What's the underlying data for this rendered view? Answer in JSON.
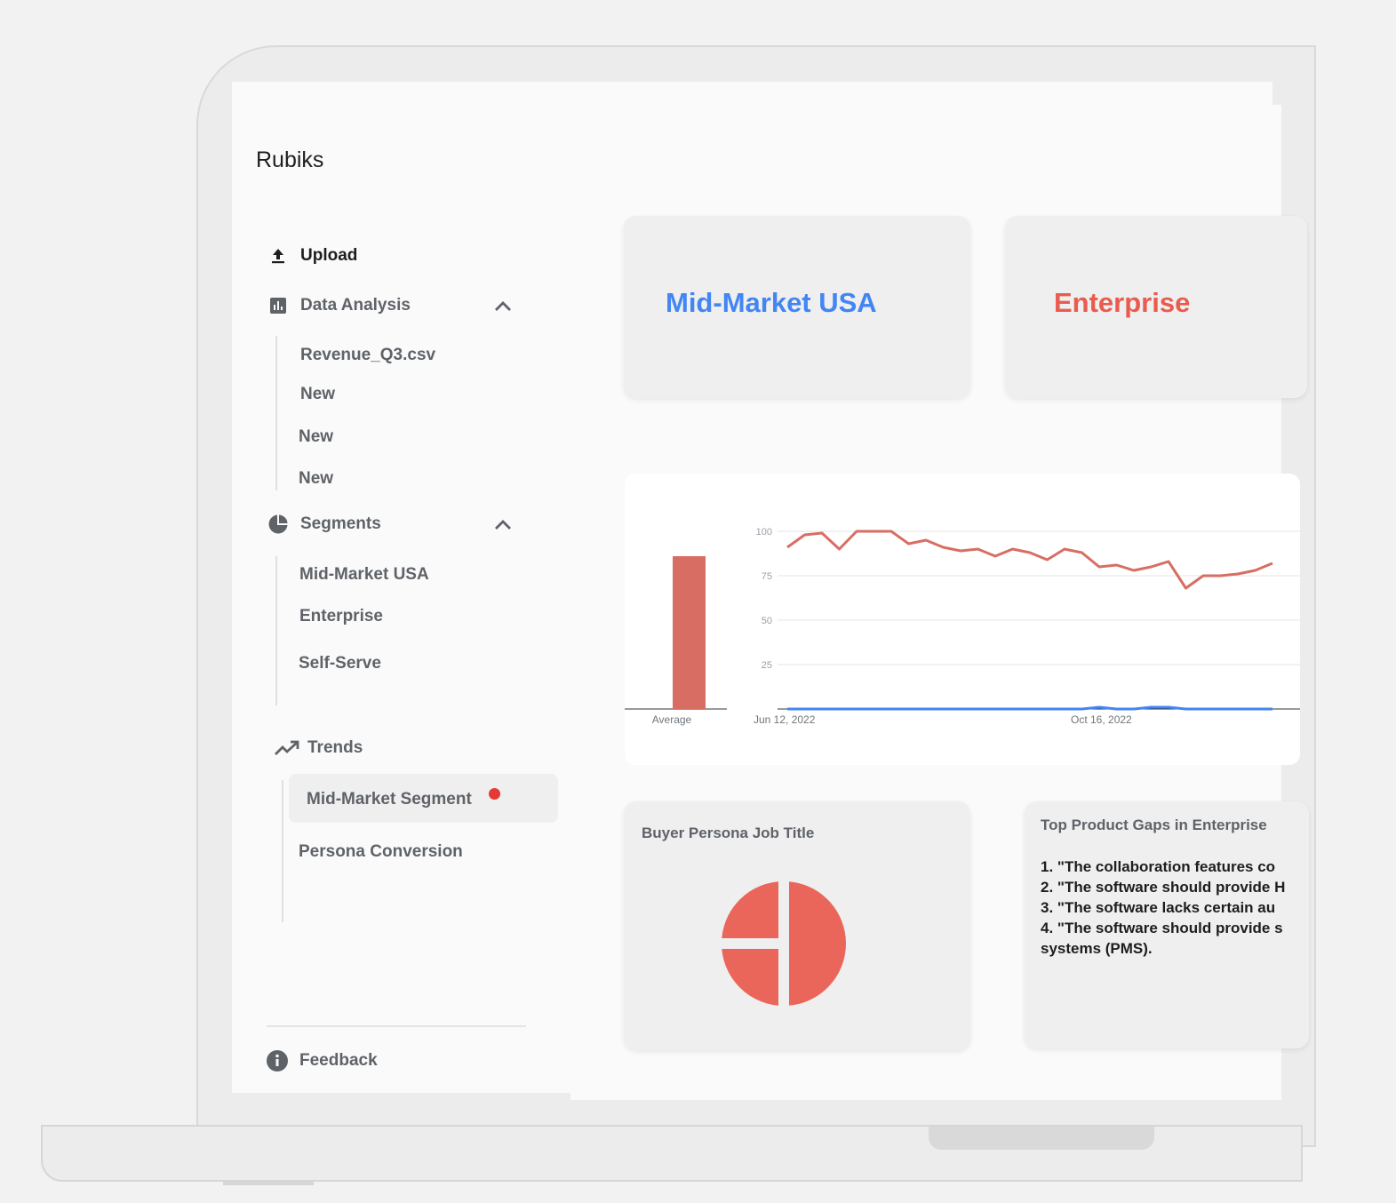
{
  "app": {
    "title": "Rubiks"
  },
  "sidebar": {
    "upload": {
      "label": "Upload",
      "icon": "upload-icon"
    },
    "data_analysis": {
      "label": "Data Analysis",
      "icon": "bar-chart-icon",
      "items": [
        "Revenue_Q3.csv",
        "New",
        "New",
        "New"
      ]
    },
    "segments": {
      "label": "Segments",
      "icon": "pie-chart-icon",
      "items": [
        "Mid-Market USA",
        "Enterprise",
        "Self-Serve"
      ]
    },
    "trends": {
      "label": "Trends",
      "icon": "trending-up-icon",
      "items": [
        "Mid-Market Segment",
        "Persona Conversion"
      ],
      "selected": "Mid-Market Segment"
    },
    "feedback": {
      "label": "Feedback",
      "icon": "info-icon"
    }
  },
  "segment_cards": [
    {
      "label": "Mid-Market USA",
      "color": "#4285f4"
    },
    {
      "label": "Enterprise",
      "color": "#ea5b4f"
    }
  ],
  "chart_data": [
    {
      "type": "bar",
      "categories": [
        "Average"
      ],
      "values": [
        86
      ],
      "ylim": [
        0,
        100
      ],
      "colors": [
        "#d86e63"
      ]
    },
    {
      "type": "line",
      "x_ticks": [
        "Jun 12, 2022",
        "Oct 16, 2022"
      ],
      "y_ticks": [
        100,
        75,
        50,
        25
      ],
      "ylim": [
        0,
        100
      ],
      "grid": true,
      "series": [
        {
          "color": "#d86e63",
          "values": [
            91,
            98,
            99,
            90,
            100,
            100,
            100,
            93,
            95,
            91,
            89,
            90,
            86,
            90,
            88,
            84,
            90,
            88,
            80,
            81,
            78,
            80,
            83,
            68,
            75,
            75,
            76,
            78,
            82
          ]
        },
        {
          "color": "#4285f4",
          "values": [
            0,
            0,
            0,
            0,
            0,
            0,
            0,
            0,
            0,
            0,
            0,
            0,
            0,
            0,
            0,
            0,
            0,
            0,
            1,
            0,
            0,
            1,
            1,
            0,
            0,
            0,
            0,
            0,
            0
          ]
        }
      ]
    },
    {
      "type": "pie",
      "title": "Buyer Persona Job Title",
      "values": [
        50,
        25,
        25
      ],
      "colors": [
        "#ea665a",
        "#ea665a",
        "#ea665a"
      ]
    }
  ],
  "cards": {
    "persona": {
      "title": "Buyer Persona Job Title"
    },
    "gaps": {
      "title": "Top Product Gaps in Enterprise",
      "lines": [
        "1. \"The collaboration features co",
        "2. \"The software should provide H",
        "3. \"The software lacks certain au",
        "4. \"The software should provide s",
        "systems (PMS)."
      ]
    }
  }
}
